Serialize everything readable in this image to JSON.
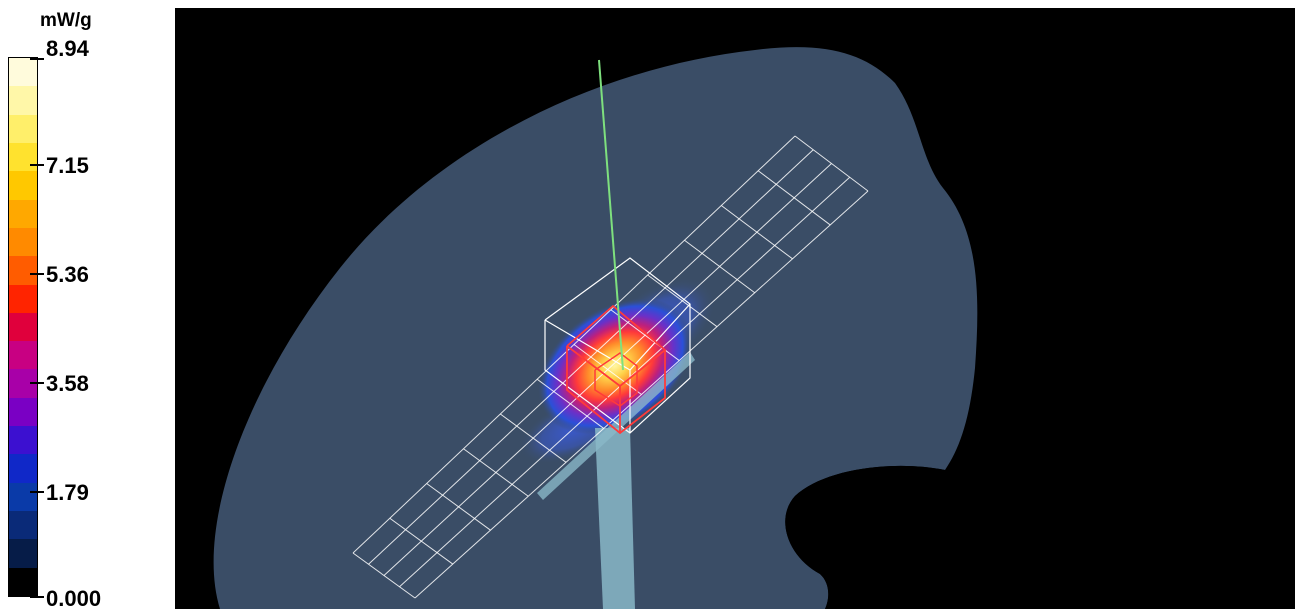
{
  "legend": {
    "unit": "mW/g",
    "ticks": [
      "8.94",
      "7.15",
      "5.36",
      "3.58",
      "1.79",
      "0.000"
    ],
    "colors": [
      "#fffbdc",
      "#fff7a8",
      "#ffef6a",
      "#ffe22e",
      "#ffc800",
      "#ffa800",
      "#ff8a00",
      "#ff5c00",
      "#ff2400",
      "#e0003c",
      "#c80082",
      "#a800a8",
      "#7a00c4",
      "#3c10d0",
      "#1028c8",
      "#0a3aa8",
      "#0a2a78",
      "#061c48",
      "#000000"
    ]
  },
  "scene": {
    "background_color": "#000000",
    "body_color": "#3a4d66",
    "grid_color": "#ffffff",
    "cube_color": "#ff3a3a",
    "probe_color": "#7ee07e",
    "phone_color": "#8ab8c8"
  }
}
